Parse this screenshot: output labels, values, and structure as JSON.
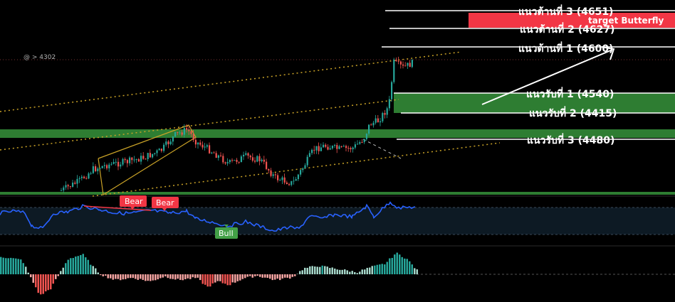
{
  "chart_data": {
    "type": "candlestick",
    "price_readout": "@ > 4302",
    "target_label": "target Butterfly",
    "colors": {
      "up": "#26a69a",
      "down": "#ef5350",
      "zone": "#2e7d32",
      "rsi": "#2962ff",
      "trend_dots": "#c9a227",
      "bear_tag": "#f23645",
      "bull_tag": "#43a047",
      "target_box": "#f23645"
    },
    "resistance_levels": [
      {
        "label": "แนวต้านที่ 3 (4651)",
        "price": 4651
      },
      {
        "label": "แนวต้านที่ 2 (4627)",
        "price": 4627
      },
      {
        "label": "แนวต้านที่ 1 (4600)",
        "price": 4600
      }
    ],
    "support_levels": [
      {
        "label": "แนวรับที่ 1 (4540)",
        "price": 4540
      },
      {
        "label": "แนวรับที่ 2 (4415)",
        "price": 4415
      },
      {
        "label": "แนวรับที่ 3 (4480)",
        "price": 4480
      }
    ],
    "indicator_tags": [
      {
        "label": "Bear"
      },
      {
        "label": "Bear"
      },
      {
        "label": "Bull"
      }
    ]
  }
}
